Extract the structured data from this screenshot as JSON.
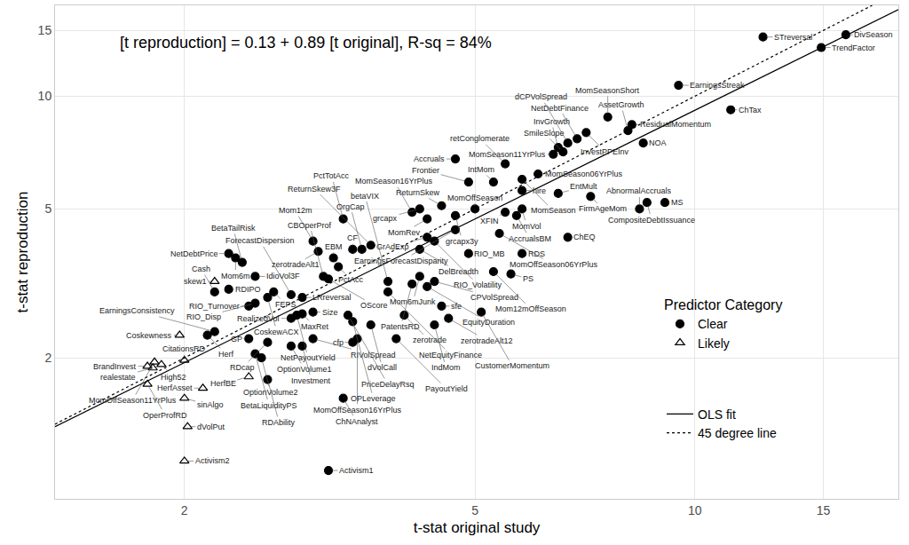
{
  "chart_data": {
    "type": "scatter",
    "annotations": [
      "[t reproduction] = 0.13 + 0.89 [t original], R-sq = 84%"
    ],
    "x_label": "t-stat original study",
    "y_label": "t-stat reproduction",
    "log": true,
    "grid": true,
    "legend": "right",
    "legend_title": "Predictor Category",
    "xlim": [
      1.33,
      19
    ],
    "ylim": [
      0.84,
      17.5
    ],
    "xticks": [
      2,
      5,
      10,
      15
    ],
    "yticks": [
      2,
      5,
      10,
      15
    ],
    "series": [
      {
        "name": "Clear",
        "marker": "circle",
        "color": "#000000",
        "labels": [
          "STreversal",
          "DivSeason",
          "TrendFactor",
          "EarningsStreak",
          "ChTax",
          "MomSeasonShort",
          "InvestPPEInv",
          "NetDebtFinance",
          "ResidualMomentum",
          "AssetGrowth",
          "NOA",
          "dCPVolSpread",
          "SmileSlope",
          "MomSeason11YrPlus",
          "InvGrowth",
          "MomSeason06YrPlus",
          "Accruals",
          "retConglomerate",
          "Frontier",
          "IntMom",
          "MomSeason",
          "hire",
          "EntMult",
          "FirmAgeMom",
          "MomOffSeason",
          "MomVol",
          "CompositeDebtIssuance",
          "MS",
          "AbnormalAccruals",
          "XFIN",
          "AccrualsBM",
          "ReturnSkew",
          "grcapx",
          "grcapx3y",
          "MomRev",
          "MomSeason16YrPlus",
          "EarningsForecastDisparity",
          "MomOffSeason06YrPlus",
          "ChEQ",
          "GrAdExp",
          "RIO_Volatility",
          "RDS",
          "RIO_MB",
          "DelBreadth",
          "PS",
          "Mom12mOffSeason",
          "EquityDuration",
          "CPVolSpread",
          "Mom6mJunk",
          "PatentsRD",
          "betaVIX",
          "NetEquityFinance",
          "sfe",
          "CustomerMomentum",
          "zerotrade",
          "zerotradeAlt12",
          "IndMom",
          "OrgCap",
          "CF",
          "PctTotAcc",
          "Mom12m",
          "ReturnSkew3F",
          "zerotradeAlt1",
          "EBM",
          "PctAcc",
          "CBOperProf",
          "OScore",
          "LRreversal",
          "ForecastDispersion",
          "Mom6m",
          "NetDebtPrice",
          "BetaTailRisk",
          "IdioVol3F",
          "CoskewACX",
          "FEPS",
          "Cash",
          "RDIPO",
          "NetPayoutYield",
          "RealizedVol",
          "MaxRet",
          "Size",
          "RIO_Disp",
          "RIO_Turnover",
          "Herf",
          "EarningsConsistency",
          "GP",
          "RDcap",
          "BetaLiquidityPS",
          "OptionVolume2",
          "Investment",
          "OptionVolume1",
          "RIVolSpread",
          "cfp",
          "MomOffSeason16YrPlus",
          "PriceDelayRsq",
          "OPLeverage",
          "dVolCall",
          "PayoutYield",
          "RDAbility",
          "ChNAnalyst",
          "Activism1"
        ],
        "x": [
          12.4,
          16.1,
          14.9,
          9.5,
          11.2,
          7.6,
          7.1,
          6.9,
          8.2,
          8.1,
          8.5,
          6.7,
          6.6,
          6.4,
          6.5,
          6.1,
          4.7,
          5.5,
          4.9,
          5.3,
          5.8,
          5.8,
          6.5,
          7.2,
          5.0,
          5.8,
          8.6,
          9.1,
          8.4,
          5.5,
          5.7,
          4.5,
          4.2,
          4.7,
          4.3,
          4.1,
          4.7,
          5.4,
          6.7,
          4.3,
          4.4,
          5.8,
          4.9,
          4.2,
          5.6,
          5.3,
          4.3,
          4.4,
          4.2,
          4.1,
          3.8,
          3.8,
          4.5,
          5.1,
          4.0,
          4.6,
          4.4,
          3.5,
          3.4,
          3.3,
          3.0,
          3.6,
          3.05,
          3.2,
          3.25,
          3.1,
          3.15,
          2.9,
          2.8,
          2.35,
          2.3,
          2.4,
          2.5,
          2.6,
          2.65,
          2.2,
          2.3,
          2.85,
          2.8,
          2.9,
          3.0,
          2.5,
          2.45,
          2.15,
          2.2,
          2.45,
          2.6,
          2.5,
          2.55,
          2.9,
          2.8,
          3.0,
          3.4,
          3.45,
          3.35,
          3.4,
          3.6,
          3.9,
          2.6,
          3.3,
          3.15
        ],
        "values": [
          14.4,
          14.6,
          13.5,
          10.7,
          9.2,
          8.8,
          8.0,
          7.7,
          8.4,
          8.1,
          7.5,
          7.5,
          7.1,
          7.0,
          7.3,
          6.2,
          6.8,
          6.6,
          5.9,
          5.9,
          6.0,
          5.6,
          5.5,
          5.4,
          5.0,
          5.0,
          5.2,
          5.2,
          5.0,
          4.9,
          4.8,
          5.1,
          5.0,
          4.8,
          4.7,
          4.9,
          4.4,
          4.3,
          4.2,
          4.2,
          4.1,
          3.8,
          3.8,
          3.9,
          3.35,
          3.4,
          3.1,
          3.2,
          3.3,
          3.15,
          3.2,
          3.0,
          2.75,
          2.65,
          2.6,
          2.55,
          2.45,
          3.9,
          3.9,
          4.7,
          4.1,
          4.0,
          3.85,
          3.7,
          3.5,
          3.3,
          3.25,
          2.9,
          2.95,
          3.7,
          3.8,
          3.6,
          3.3,
          2.9,
          3.0,
          3.0,
          3.05,
          2.6,
          2.55,
          2.62,
          2.65,
          2.8,
          2.75,
          2.3,
          2.35,
          2.25,
          2.2,
          2.05,
          2.0,
          2.15,
          2.15,
          2.25,
          2.2,
          2.25,
          2.6,
          2.5,
          2.45,
          2.25,
          1.75,
          1.56,
          1.0
        ]
      },
      {
        "name": "Likely",
        "marker": "triangle-up-open",
        "color": "#000000",
        "labels": [
          "skew1",
          "Coskewness",
          "MomOffSeason11YrPlus",
          "High52",
          "realestate",
          "BrandInvest",
          "CitationsRD",
          "HerfBE",
          "HerfAsset",
          "OperProfRD",
          "sinAlgo",
          "dVolPut",
          "Activism2"
        ],
        "x": [
          2.2,
          1.97,
          1.82,
          1.86,
          1.81,
          1.78,
          2.0,
          2.45,
          2.12,
          1.78,
          2.0,
          2.02,
          2.0
        ],
        "values": [
          3.2,
          2.3,
          1.95,
          1.92,
          1.88,
          1.9,
          1.97,
          1.78,
          1.66,
          1.7,
          1.56,
          1.31,
          1.06
        ]
      },
      {
        "name": "OLS fit",
        "type": "line",
        "line_style": "solid",
        "color": "#000000",
        "x": [
          1.33,
          19
        ],
        "values": [
          1.31,
          17.04
        ]
      },
      {
        "name": "45 degree line",
        "type": "line",
        "line_style": "dotted",
        "color": "#000000",
        "x": [
          1.33,
          17.5
        ],
        "values": [
          1.33,
          17.5
        ]
      }
    ]
  }
}
